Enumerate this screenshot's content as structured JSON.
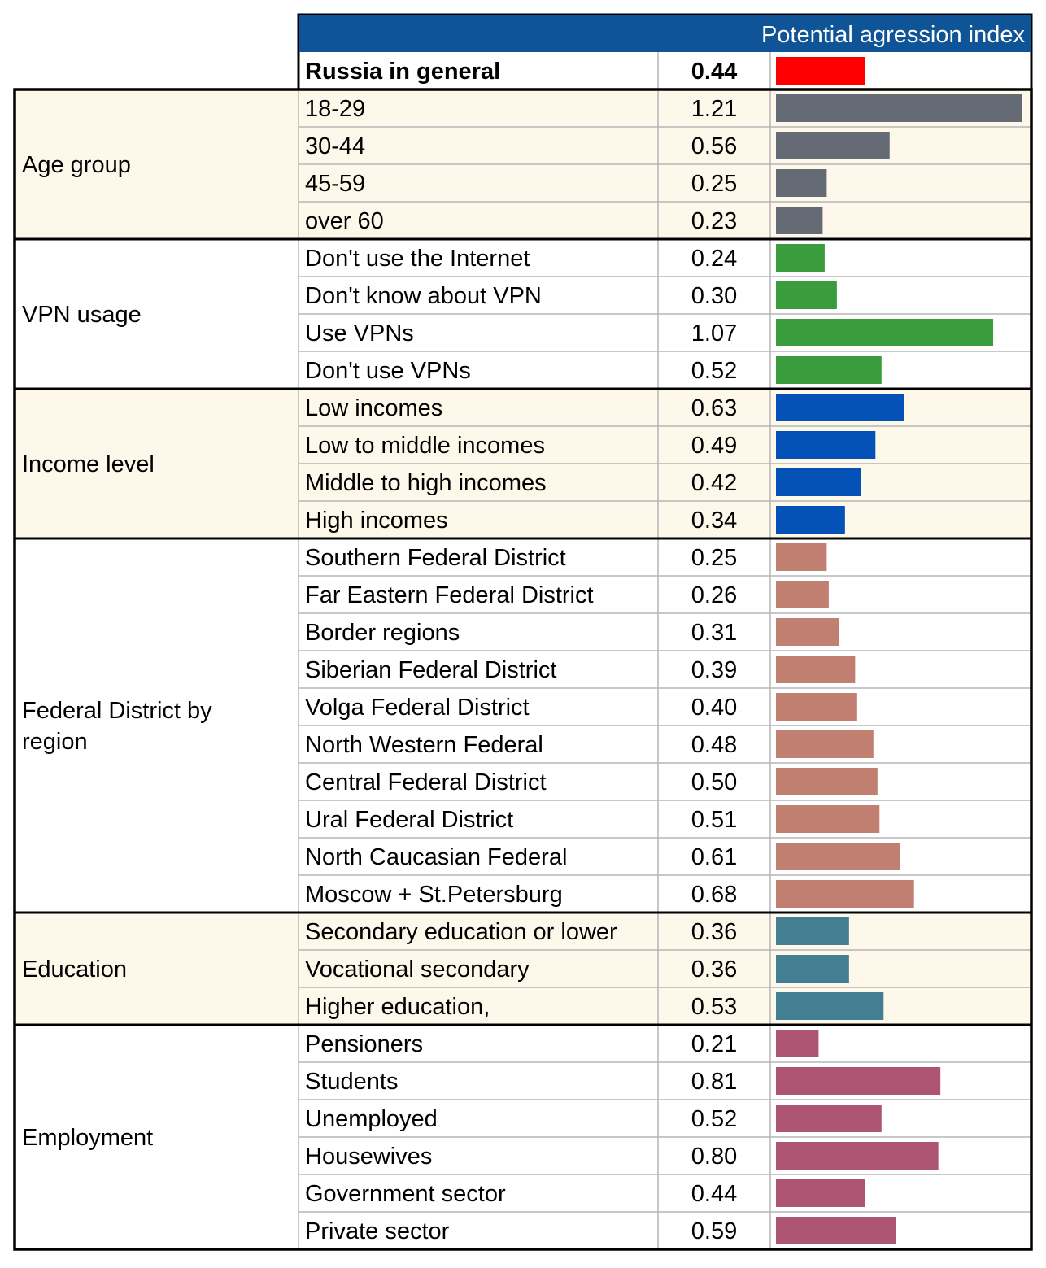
{
  "colors": {
    "header_bg": "#0f5496",
    "header_text": "#ffffff",
    "band_beige": "#fdf8ea",
    "band_white": "#ffffff",
    "overall_bar": "#ff0000",
    "thin_grid": "#b5b5b5",
    "thick_border": "#000000"
  },
  "chart_data": {
    "type": "bar",
    "orientation": "horizontal",
    "title": "Potential agression index",
    "xlim": [
      0,
      1.21
    ],
    "overall": {
      "label": "Russia in general",
      "value": 0.44,
      "display": "0.44"
    },
    "groups": [
      {
        "name": "Age group",
        "bar_color": "#646b74",
        "band": "beige",
        "rows": [
          {
            "label": "18-29",
            "value": 1.21,
            "display": "1.21"
          },
          {
            "label": "30-44",
            "value": 0.56,
            "display": "0.56"
          },
          {
            "label": "45-59",
            "value": 0.25,
            "display": "0.25"
          },
          {
            "label": "over 60",
            "value": 0.23,
            "display": "0.23"
          }
        ]
      },
      {
        "name": "VPN usage",
        "bar_color": "#3a9c3c",
        "band": "white",
        "rows": [
          {
            "label": "Don't use the Internet",
            "value": 0.24,
            "display": "0.24"
          },
          {
            "label": "Don't know about VPN",
            "value": 0.3,
            "display": "0.30"
          },
          {
            "label": "Use VPNs",
            "value": 1.07,
            "display": "1.07"
          },
          {
            "label": "Don't use VPNs",
            "value": 0.52,
            "display": "0.52"
          }
        ]
      },
      {
        "name": "Income level",
        "bar_color": "#0452b8",
        "band": "beige",
        "rows": [
          {
            "label": "Low incomes",
            "value": 0.63,
            "display": "0.63"
          },
          {
            "label": "Low to middle incomes",
            "value": 0.49,
            "display": "0.49"
          },
          {
            "label": "Middle to high incomes",
            "value": 0.42,
            "display": "0.42"
          },
          {
            "label": "High incomes",
            "value": 0.34,
            "display": "0.34"
          }
        ]
      },
      {
        "name": "Federal District by region",
        "bar_color": "#c07f70",
        "band": "white",
        "rows": [
          {
            "label": "Southern Federal District",
            "value": 0.25,
            "display": "0.25"
          },
          {
            "label": "Far Eastern Federal District",
            "value": 0.26,
            "display": "0.26"
          },
          {
            "label": "Border regions",
            "value": 0.31,
            "display": "0.31"
          },
          {
            "label": "Siberian Federal District",
            "value": 0.39,
            "display": "0.39"
          },
          {
            "label": "Volga Federal District",
            "value": 0.4,
            "display": "0.40"
          },
          {
            "label": "North Western Federal",
            "value": 0.48,
            "display": "0.48"
          },
          {
            "label": "Central Federal District",
            "value": 0.5,
            "display": "0.50"
          },
          {
            "label": "Ural Federal District",
            "value": 0.51,
            "display": "0.51"
          },
          {
            "label": "North Caucasian Federal",
            "value": 0.61,
            "display": "0.61"
          },
          {
            "label": "Moscow + St.Petersburg",
            "value": 0.68,
            "display": "0.68"
          }
        ]
      },
      {
        "name": "Education",
        "bar_color": "#447e92",
        "band": "beige",
        "rows": [
          {
            "label": "Secondary education or lower",
            "value": 0.36,
            "display": "0.36"
          },
          {
            "label": "Vocational secondary",
            "value": 0.36,
            "display": "0.36"
          },
          {
            "label": "Higher education,",
            "value": 0.53,
            "display": "0.53"
          }
        ]
      },
      {
        "name": "Employment",
        "bar_color": "#ad5573",
        "band": "white",
        "rows": [
          {
            "label": "Pensioners",
            "value": 0.21,
            "display": "0.21"
          },
          {
            "label": "Students",
            "value": 0.81,
            "display": "0.81"
          },
          {
            "label": "Unemployed",
            "value": 0.52,
            "display": "0.52"
          },
          {
            "label": "Housewives",
            "value": 0.8,
            "display": "0.80"
          },
          {
            "label": "Government sector",
            "value": 0.44,
            "display": "0.44"
          },
          {
            "label": "Private sector",
            "value": 0.59,
            "display": "0.59"
          }
        ]
      }
    ]
  }
}
